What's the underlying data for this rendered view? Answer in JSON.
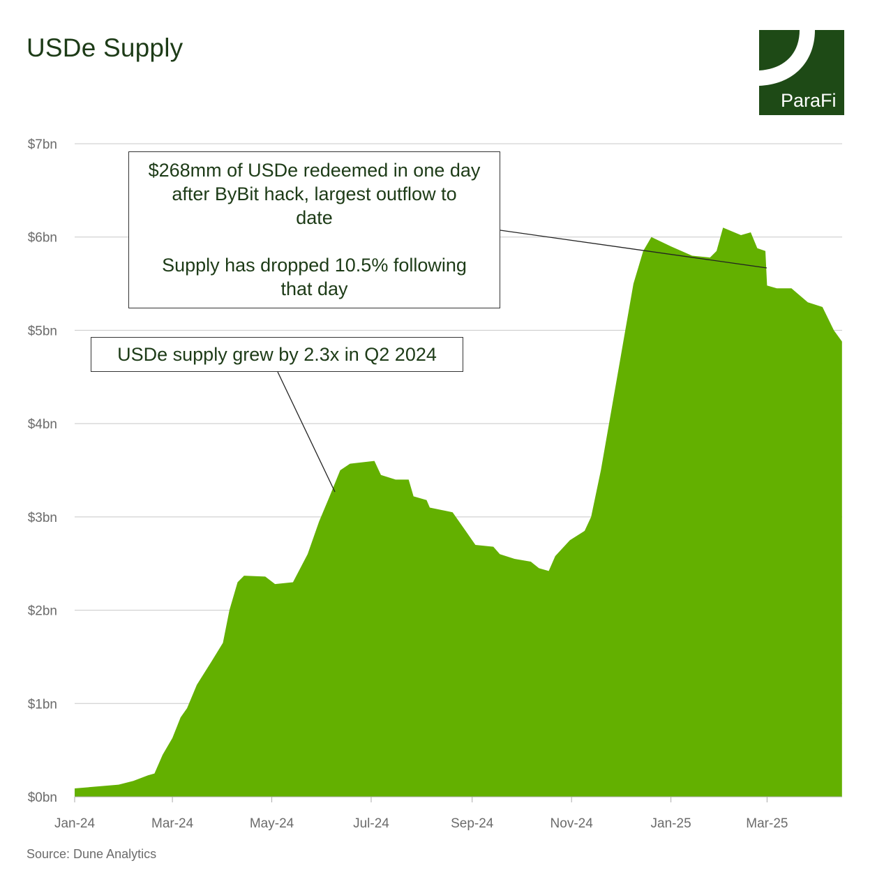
{
  "title": "USDe Supply",
  "source": "Source: Dune Analytics",
  "logo": {
    "text": "ParaFi",
    "color": "#1e4a16"
  },
  "annotations": [
    {
      "line1": "$268mm of USDe redeemed in one day",
      "line2": "after ByBit hack, largest outflow to",
      "line3": "date",
      "line4": "Supply has dropped 10.5% following",
      "line5": "that day",
      "points_to": "2025-02-28"
    },
    {
      "line1": "USDe supply grew by 2.3x in Q2 2024",
      "points_to": "2024-06-10"
    }
  ],
  "chart_data": {
    "type": "area",
    "title": "USDe Supply",
    "xlabel": "",
    "ylabel": "",
    "color": "#63b000",
    "grid": true,
    "ylim": [
      0,
      7
    ],
    "y_ticks": [
      {
        "v": 0,
        "label": "$0bn"
      },
      {
        "v": 1,
        "label": "$1bn"
      },
      {
        "v": 2,
        "label": "$2bn"
      },
      {
        "v": 3,
        "label": "$3bn"
      },
      {
        "v": 4,
        "label": "$4bn"
      },
      {
        "v": 5,
        "label": "$5bn"
      },
      {
        "v": 6,
        "label": "$6bn"
      },
      {
        "v": 7,
        "label": "$7bn"
      }
    ],
    "x_ticks": [
      {
        "d": "2024-01-01",
        "label": "Jan-24"
      },
      {
        "d": "2024-03-01",
        "label": "Mar-24"
      },
      {
        "d": "2024-05-01",
        "label": "May-24"
      },
      {
        "d": "2024-07-01",
        "label": "Jul-24"
      },
      {
        "d": "2024-09-01",
        "label": "Sep-24"
      },
      {
        "d": "2024-11-01",
        "label": "Nov-24"
      },
      {
        "d": "2025-01-01",
        "label": "Jan-25"
      },
      {
        "d": "2025-03-01",
        "label": "Mar-25"
      }
    ],
    "series": [
      {
        "x": [
          "2024-01-01",
          "2024-01-28",
          "2024-02-06",
          "2024-02-15",
          "2024-02-19",
          "2024-02-24",
          "2024-03-01",
          "2024-03-06",
          "2024-03-10",
          "2024-03-16",
          "2024-03-25",
          "2024-04-01",
          "2024-04-05",
          "2024-04-10",
          "2024-04-14",
          "2024-04-27",
          "2024-05-03",
          "2024-05-14",
          "2024-05-23",
          "2024-05-30",
          "2024-06-05",
          "2024-06-12",
          "2024-06-18",
          "2024-07-03",
          "2024-07-07",
          "2024-07-16",
          "2024-07-24",
          "2024-07-27",
          "2024-08-04",
          "2024-08-06",
          "2024-08-20",
          "2024-08-28",
          "2024-09-03",
          "2024-09-14",
          "2024-09-18",
          "2024-09-27",
          "2024-10-07",
          "2024-10-12",
          "2024-10-18",
          "2024-10-22",
          "2024-10-31",
          "2024-11-09",
          "2024-11-13",
          "2024-11-19",
          "2024-11-24",
          "2024-11-30",
          "2024-12-04",
          "2024-12-09",
          "2024-12-15",
          "2024-12-20",
          "2025-01-01",
          "2025-01-14",
          "2025-01-25",
          "2025-01-29",
          "2025-02-02",
          "2025-02-13",
          "2025-02-19",
          "2025-02-23",
          "2025-02-28",
          "2025-03-01",
          "2025-03-07",
          "2025-03-16",
          "2025-03-26",
          "2025-04-04",
          "2025-04-11",
          "2025-04-16"
        ],
        "y": [
          0.09,
          0.13,
          0.17,
          0.23,
          0.25,
          0.45,
          0.63,
          0.85,
          0.95,
          1.2,
          1.45,
          1.65,
          2.0,
          2.3,
          2.37,
          2.36,
          2.28,
          2.3,
          2.6,
          2.95,
          3.2,
          3.5,
          3.57,
          3.6,
          3.45,
          3.4,
          3.4,
          3.22,
          3.18,
          3.1,
          3.05,
          2.85,
          2.7,
          2.68,
          2.6,
          2.55,
          2.52,
          2.45,
          2.42,
          2.58,
          2.75,
          2.85,
          3.0,
          3.5,
          4.0,
          4.6,
          5.0,
          5.5,
          5.85,
          6.0,
          5.9,
          5.8,
          5.78,
          5.85,
          6.1,
          6.02,
          6.05,
          5.88,
          5.85,
          5.48,
          5.45,
          5.45,
          5.3,
          5.25,
          5.0,
          4.88
        ]
      }
    ]
  }
}
